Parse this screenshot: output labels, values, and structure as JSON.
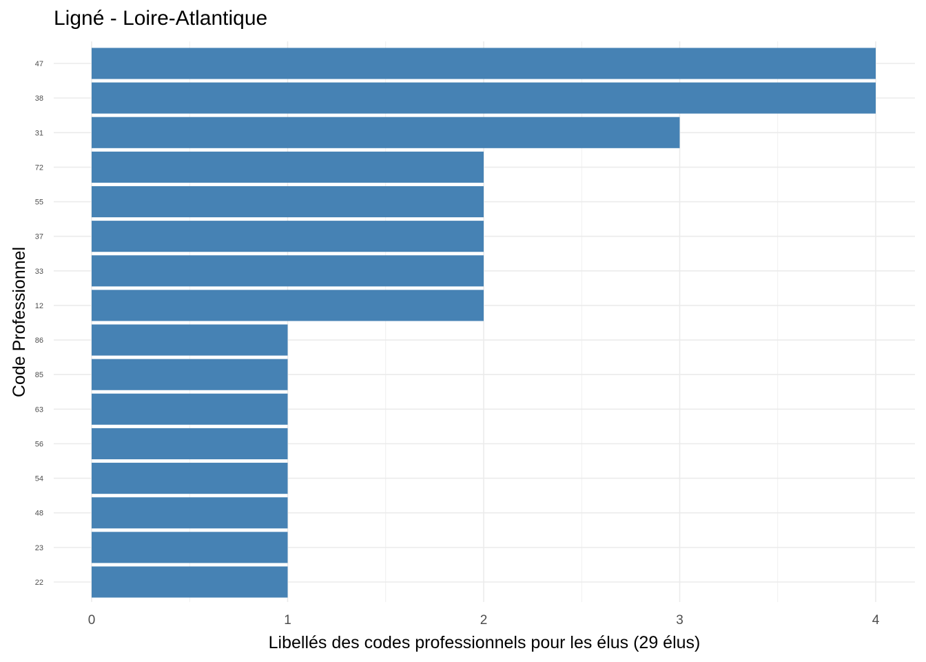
{
  "chart_data": {
    "type": "bar",
    "orientation": "horizontal",
    "title": "Ligné - Loire-Atlantique",
    "xlabel": "Libellés des codes professionnels pour les élus (29 élus)",
    "ylabel": "Code Professionnel",
    "categories": [
      "47",
      "38",
      "31",
      "72",
      "55",
      "37",
      "33",
      "12",
      "86",
      "85",
      "63",
      "56",
      "54",
      "48",
      "23",
      "22"
    ],
    "values": [
      4,
      4,
      3,
      2,
      2,
      2,
      2,
      2,
      1,
      1,
      1,
      1,
      1,
      1,
      1,
      1
    ],
    "xlim": [
      0,
      4
    ],
    "xticks": [
      "0",
      "1",
      "2",
      "3",
      "4"
    ],
    "grid": true,
    "legend": "none",
    "bar_color": "#4682B4",
    "grid_color": "#EBEBEB"
  }
}
